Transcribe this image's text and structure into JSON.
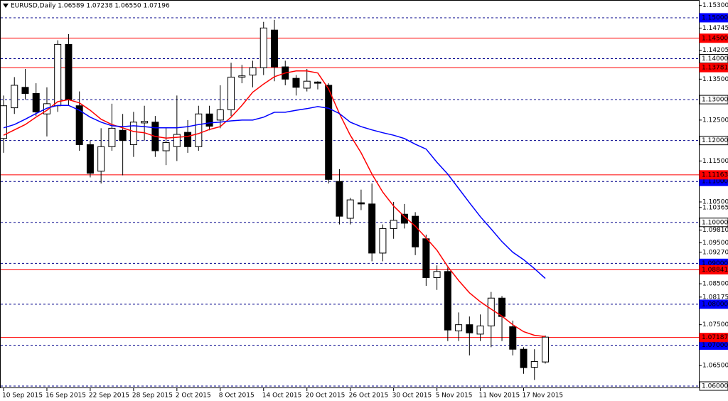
{
  "chart_data": {
    "type": "candlestick",
    "title": "EURUSD,Daily 1.06589 1.07238 1.06550 1.07196",
    "categories": [
      "10 Sep 2015",
      null,
      null,
      null,
      "16 Sep 2015",
      null,
      null,
      null,
      "22 Sep 2015",
      null,
      null,
      null,
      "28 Sep 2015",
      null,
      null,
      null,
      "2 Oct 2015",
      null,
      null,
      null,
      "8 Oct 2015",
      null,
      null,
      null,
      "14 Oct 2015",
      null,
      null,
      null,
      "20 Oct 2015",
      null,
      null,
      null,
      "26 Oct 2015",
      null,
      null,
      null,
      "30 Oct 2015",
      null,
      null,
      null,
      "5 Nov 2015",
      null,
      null,
      null,
      "11 Nov 2015",
      null,
      null,
      null,
      "17 Nov 2015",
      null,
      null
    ],
    "open": [
      1.1205,
      1.128,
      1.133,
      1.1315,
      1.1265,
      1.1285,
      1.1435,
      1.1285,
      1.119,
      1.1125,
      1.1185,
      1.1225,
      1.119,
      1.1243,
      1.1245,
      1.1175,
      1.1185,
      1.122,
      1.1185,
      1.1265,
      1.125,
      1.1275,
      1.1355,
      1.136,
      1.1378,
      1.147,
      1.138,
      1.1352,
      1.1328,
      1.1343,
      1.1335,
      1.11,
      1.101,
      1.1048,
      1.1045,
      1.0925,
      1.0985,
      1.102,
      1.1015,
      1.096,
      1.0865,
      1.088,
      1.0735,
      1.075,
      1.0727,
      1.0747,
      1.0815,
      1.0745,
      1.069,
      1.0646,
      1.06589
    ],
    "high": [
      1.131,
      1.1355,
      1.1375,
      1.134,
      1.133,
      1.1445,
      1.146,
      1.132,
      1.12,
      1.123,
      1.129,
      1.1265,
      1.127,
      1.1285,
      1.126,
      1.123,
      1.131,
      1.125,
      1.1285,
      1.1285,
      1.1335,
      1.139,
      1.1385,
      1.1395,
      1.149,
      1.1495,
      1.1395,
      1.136,
      1.1375,
      1.1345,
      1.134,
      1.113,
      1.106,
      1.108,
      1.1095,
      1.0995,
      1.105,
      1.1045,
      1.1025,
      1.097,
      1.0895,
      1.089,
      1.078,
      1.077,
      1.0775,
      1.083,
      1.082,
      1.076,
      1.0695,
      1.069,
      1.07238
    ],
    "low": [
      1.117,
      1.1265,
      1.13,
      1.126,
      1.121,
      1.127,
      1.1285,
      1.1175,
      1.111,
      1.1095,
      1.1175,
      1.1115,
      1.116,
      1.12,
      1.116,
      1.114,
      1.115,
      1.117,
      1.1175,
      1.1225,
      1.123,
      1.126,
      1.134,
      1.133,
      1.136,
      1.1345,
      1.1335,
      1.131,
      1.132,
      1.1325,
      1.1095,
      1.0995,
      1.0995,
      1.103,
      1.0905,
      1.0905,
      1.096,
      1.0985,
      1.092,
      1.0845,
      1.0835,
      1.071,
      1.071,
      1.0675,
      1.071,
      1.0695,
      1.071,
      1.0675,
      1.063,
      1.0615,
      1.0655
    ],
    "close": [
      1.1285,
      1.1335,
      1.1315,
      1.127,
      1.129,
      1.1435,
      1.13,
      1.119,
      1.112,
      1.1185,
      1.123,
      1.12,
      1.1245,
      1.1247,
      1.1175,
      1.1195,
      1.1215,
      1.1185,
      1.1265,
      1.1235,
      1.1275,
      1.1355,
      1.1358,
      1.1378,
      1.1475,
      1.138,
      1.135,
      1.133,
      1.1345,
      1.134,
      1.1105,
      1.1015,
      1.1055,
      1.1045,
      1.0925,
      1.0985,
      1.1005,
      1.0998,
      1.094,
      1.0865,
      1.088,
      1.0737,
      1.075,
      1.073,
      1.0747,
      1.0815,
      1.077,
      1.069,
      1.0645,
      1.066,
      1.07196
    ],
    "up_color": "#ffffff",
    "down_color": "#000000",
    "lines": [
      {
        "color": "#ff0000",
        "values": [
          1.1213,
          1.1226,
          1.1239,
          1.1257,
          1.1274,
          1.1295,
          1.13,
          1.1292,
          1.1274,
          1.1252,
          1.1239,
          1.1231,
          1.1222,
          1.1219,
          1.121,
          1.1206,
          1.1208,
          1.121,
          1.1217,
          1.1227,
          1.1234,
          1.1257,
          1.1286,
          1.1318,
          1.1338,
          1.1356,
          1.1365,
          1.137,
          1.137,
          1.1365,
          1.1326,
          1.1266,
          1.1213,
          1.117,
          1.1118,
          1.1074,
          1.104,
          1.1014,
          1.0991,
          1.0962,
          1.0932,
          1.0892,
          1.0858,
          1.0828,
          1.0806,
          1.0788,
          1.0771,
          1.075,
          1.0733,
          1.0724,
          1.0721
        ]
      },
      {
        "color": "#0000ff",
        "values": [
          1.1231,
          1.1239,
          1.1252,
          1.1266,
          1.1279,
          1.1286,
          1.1286,
          1.1274,
          1.1257,
          1.1245,
          1.1236,
          1.1234,
          1.1236,
          1.1234,
          1.1231,
          1.1231,
          1.1231,
          1.1234,
          1.1239,
          1.1243,
          1.1245,
          1.1248,
          1.125,
          1.125,
          1.1257,
          1.1269,
          1.1269,
          1.1274,
          1.1278,
          1.1283,
          1.1279,
          1.1266,
          1.1245,
          1.1234,
          1.1226,
          1.1219,
          1.1213,
          1.1205,
          1.1191,
          1.1179,
          1.1147,
          1.1118,
          1.1083,
          1.1048,
          1.1014,
          1.0984,
          1.0953,
          1.0927,
          1.0909,
          1.0887,
          1.0863
        ]
      }
    ],
    "ylim": [
      1.05948,
      1.15434
    ],
    "yticks": [
      {
        "value": 1.153,
        "label": "1.15300"
      },
      {
        "value": 1.14745,
        "label": "1.14745"
      },
      {
        "value": 1.14205,
        "label": "1.14205"
      },
      {
        "value": 1.135,
        "label": "1.13500"
      },
      {
        "value": 1.125,
        "label": "1.12500"
      },
      {
        "value": 1.115,
        "label": "1.11500"
      },
      {
        "value": 1.105,
        "label": "1.10500"
      },
      {
        "value": 1.10365,
        "label": "1.10365"
      },
      {
        "value": 1.0981,
        "label": "1.09810"
      },
      {
        "value": 1.095,
        "label": "1.09500"
      },
      {
        "value": 1.0927,
        "label": "1.09270"
      },
      {
        "value": 1.085,
        "label": "1.08500"
      },
      {
        "value": 1.08175,
        "label": "1.08175"
      },
      {
        "value": 1.075,
        "label": "1.07500"
      },
      {
        "value": 1.065,
        "label": "1.06500"
      }
    ],
    "levels": [
      {
        "value": 1.15,
        "label": "1.15000",
        "color": "#00008b",
        "box": "#0000ff",
        "dashed": true
      },
      {
        "value": 1.14,
        "label": "1.14000",
        "color": "#00008b",
        "box": "#ffffff",
        "dashed": true
      },
      {
        "value": 1.13,
        "label": "1.13000",
        "color": "#00008b",
        "box": "#ffffff",
        "dashed": true
      },
      {
        "value": 1.12,
        "label": "1.12000",
        "color": "#00008b",
        "box": "#ffffff",
        "dashed": true
      },
      {
        "value": 1.11,
        "label": "1.11000",
        "color": "#00008b",
        "box": "#0000ff",
        "dashed": true
      },
      {
        "value": 1.1,
        "label": "1.10000",
        "color": "#00008b",
        "box": "#ffffff",
        "dashed": true
      },
      {
        "value": 1.09,
        "label": "1.09000",
        "color": "#00008b",
        "box": "#0000ff",
        "dashed": true
      },
      {
        "value": 1.08,
        "label": "1.08000",
        "color": "#00008b",
        "box": "#0000ff",
        "dashed": true
      },
      {
        "value": 1.07,
        "label": "1.07000",
        "color": "#00008b",
        "box": "#0000ff",
        "dashed": true
      },
      {
        "value": 1.06,
        "label": "1.06000",
        "color": "#00008b",
        "box": "#ffffff",
        "dashed": true
      },
      {
        "value": 1.145,
        "label": "1.14500",
        "color": "#ff0000",
        "box": "#ff0000",
        "dashed": false
      },
      {
        "value": 1.13781,
        "label": "1.13781",
        "color": "#ff0000",
        "box": "#ff0000",
        "dashed": false
      },
      {
        "value": 1.11163,
        "label": "1.11163",
        "color": "#ff0000",
        "box": "#ff0000",
        "dashed": false
      },
      {
        "value": 1.08841,
        "label": "1.08841",
        "color": "#ff0000",
        "box": "#ff0000",
        "dashed": false
      },
      {
        "value": 1.07187,
        "label": "1.07187",
        "color": "#ff0000",
        "box": "#ff0000",
        "dashed": false
      }
    ]
  }
}
